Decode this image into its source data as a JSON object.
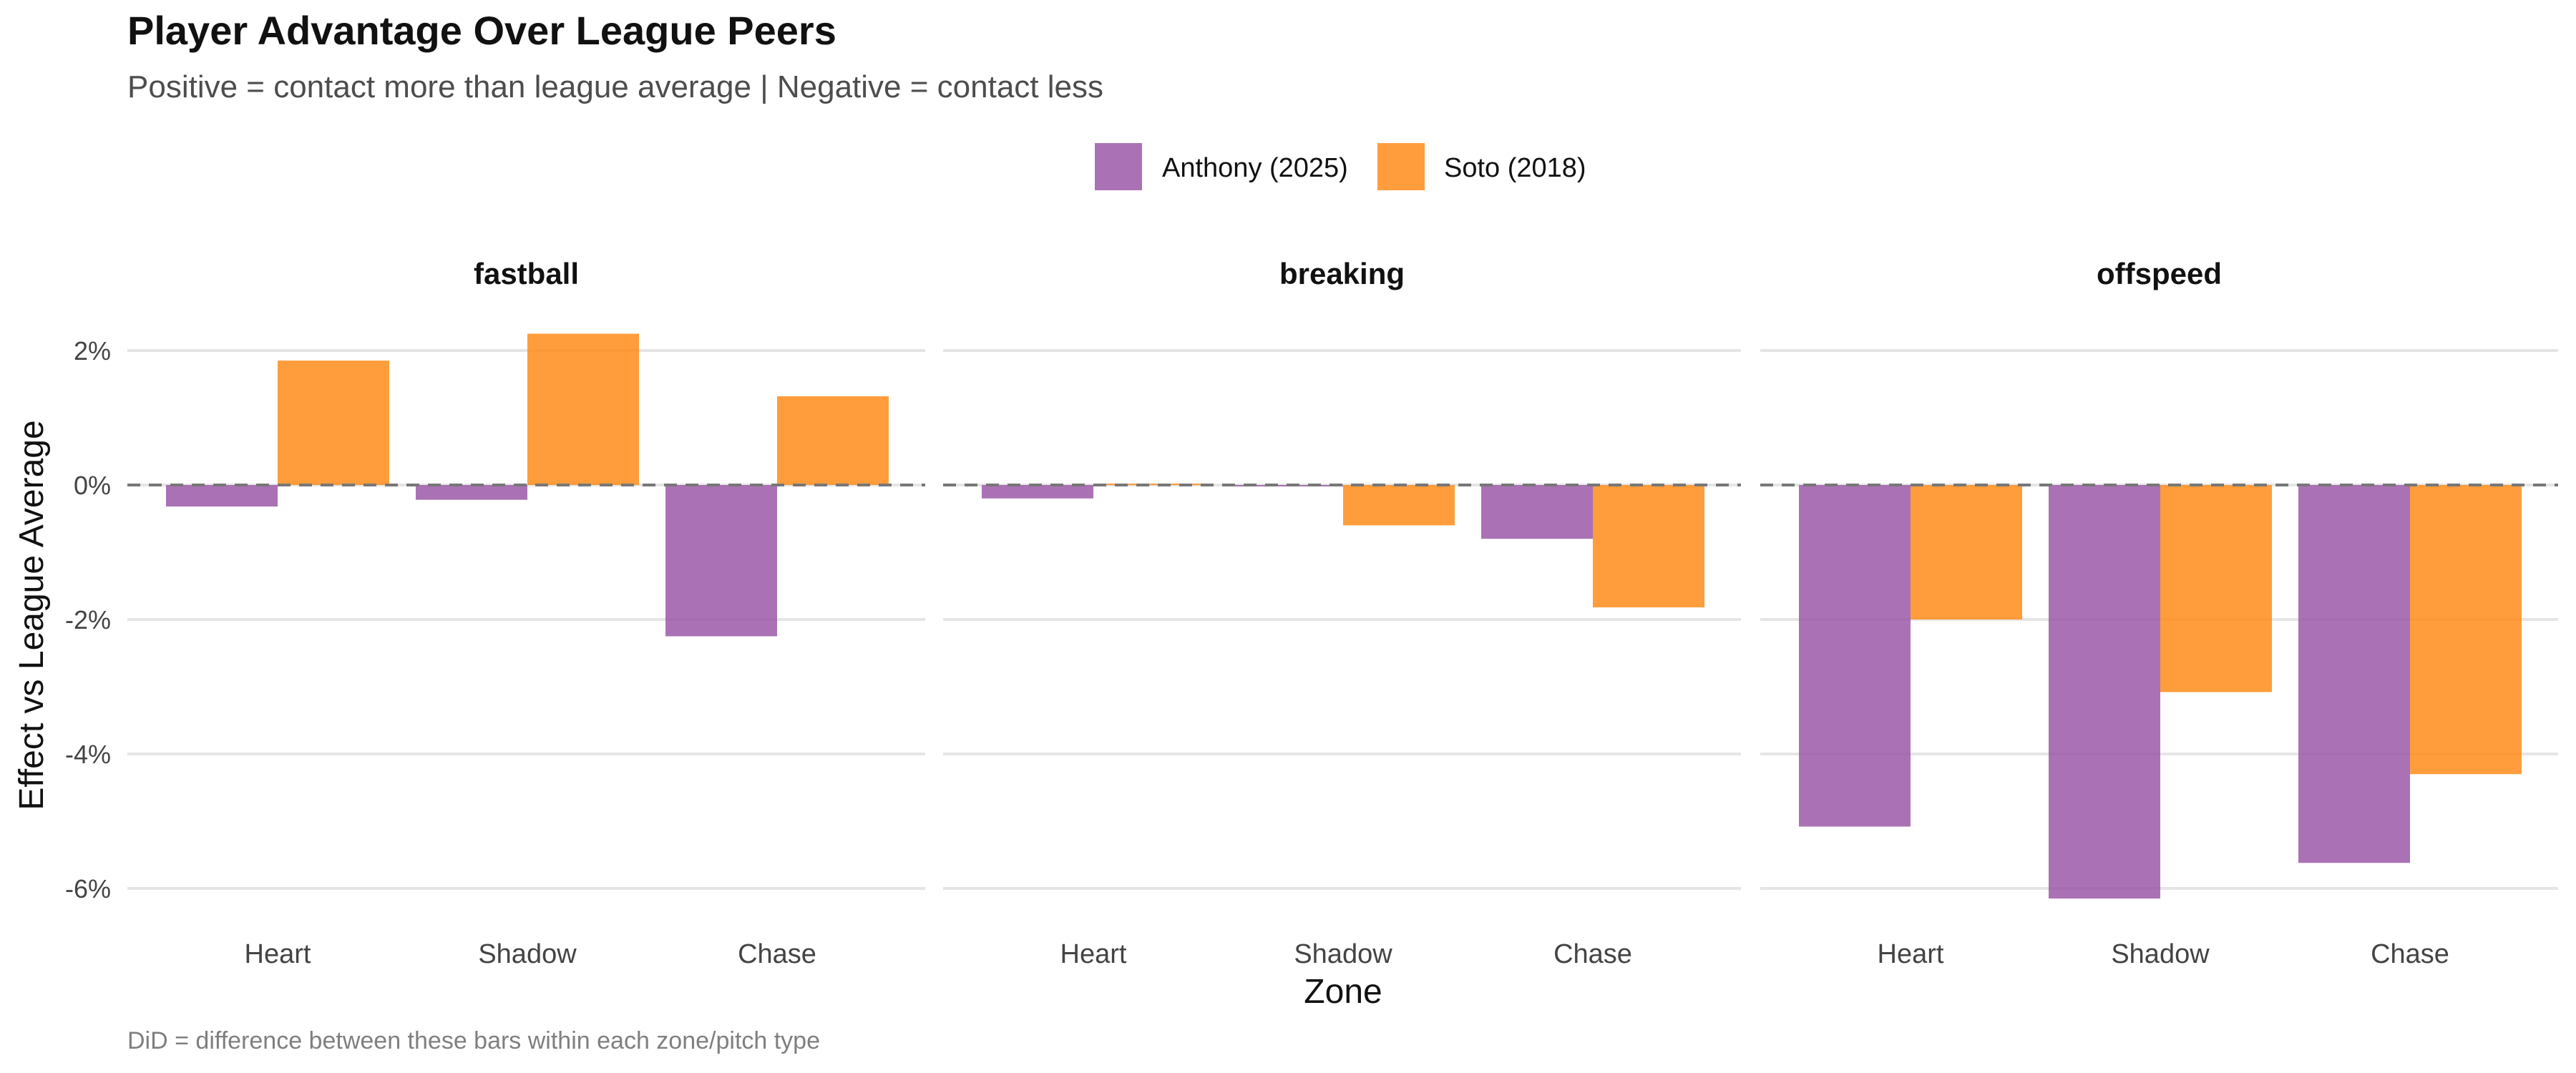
{
  "chart_data": {
    "type": "bar",
    "title": "Player Advantage Over League Peers",
    "subtitle": "Positive = contact more than league average | Negative = contact less",
    "caption": "DiD = difference between these bars within each zone/pitch type",
    "xlabel": "Zone",
    "ylabel": "Effect vs League Average",
    "ylim": [
      -6.2,
      2.5
    ],
    "yticks": [
      2,
      0,
      -2,
      -4,
      -6
    ],
    "ytick_labels": [
      "2%",
      "0%",
      "-2%",
      "-4%",
      "-6%"
    ],
    "grid": true,
    "legend_position": "top",
    "categories": [
      "Heart",
      "Shadow",
      "Chase"
    ],
    "series": [
      {
        "name": "Anthony (2025)",
        "color": "#9B59A8"
      },
      {
        "name": "Soto (2018)",
        "color": "#FF8C1A"
      }
    ],
    "panels": [
      {
        "title": "fastball",
        "values": {
          "Anthony (2025)": [
            -0.32,
            -0.22,
            -2.25
          ],
          "Soto (2018)": [
            1.85,
            2.25,
            1.32
          ]
        }
      },
      {
        "title": "breaking",
        "values": {
          "Anthony (2025)": [
            -0.2,
            -0.02,
            -0.8
          ],
          "Soto (2018)": [
            0.02,
            -0.6,
            -1.82
          ]
        }
      },
      {
        "title": "offspeed",
        "values": {
          "Anthony (2025)": [
            -5.08,
            -6.15,
            -5.62
          ],
          "Soto (2018)": [
            -2.0,
            -3.08,
            -4.3
          ]
        }
      }
    ]
  }
}
